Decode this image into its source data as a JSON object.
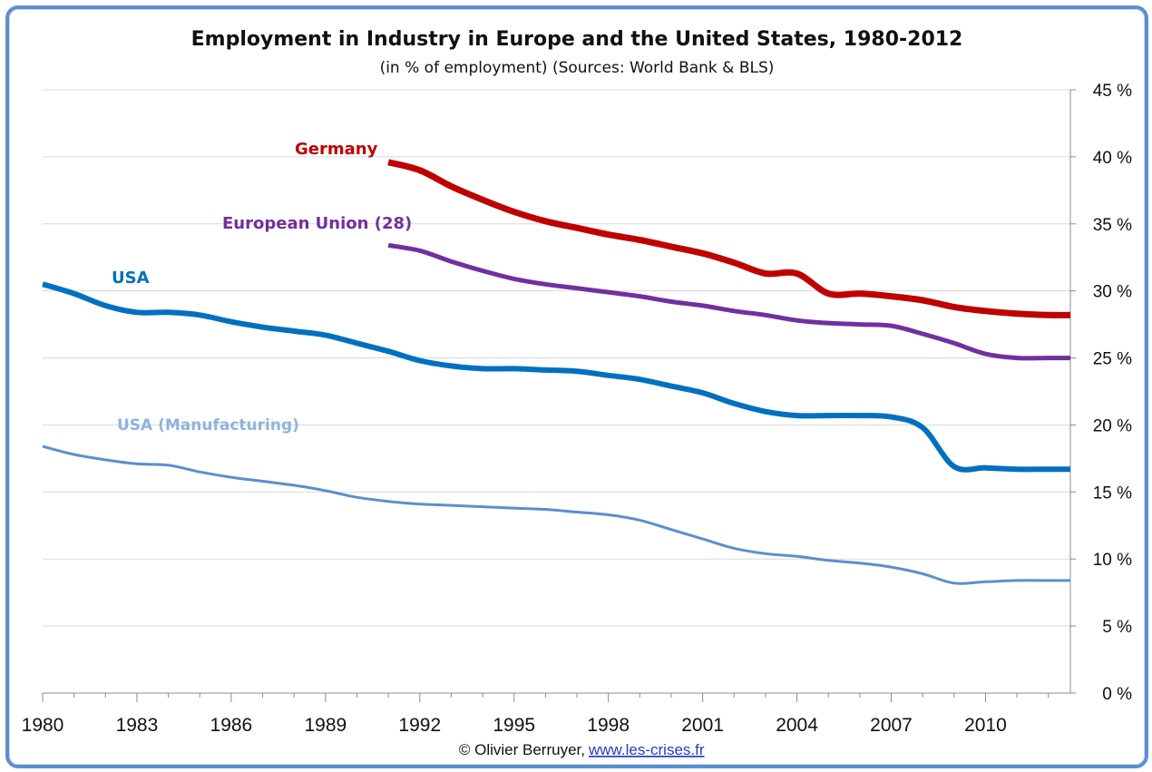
{
  "chart_data": {
    "type": "line",
    "title": "Employment in Industry in Europe and the United States, 1980-2012",
    "subtitle": "(in % of employment) (Sources: World Bank & BLS)",
    "xlim": [
      1980,
      2012.7
    ],
    "ylim": [
      0,
      45
    ],
    "x_ticks": [
      "1980",
      "1983",
      "1986",
      "1989",
      "1992",
      "1995",
      "1998",
      "2001",
      "2004",
      "2007",
      "2010"
    ],
    "y_ticks": [
      "0 %",
      "5 %",
      "10 %",
      "15 %",
      "20 %",
      "25 %",
      "30 %",
      "35 %",
      "40 %",
      "45 %"
    ],
    "y_axis_side": "right",
    "grid": true,
    "series": [
      {
        "name": "Germany",
        "color": "#c00000",
        "width": 7,
        "x": [
          1991,
          1992,
          1993,
          1994,
          1995,
          1996,
          1997,
          1998,
          1999,
          2000,
          2001,
          2002,
          2003,
          2004,
          2005,
          2006,
          2007,
          2008,
          2009,
          2010,
          2011,
          2012,
          2012.7
        ],
        "y": [
          39.6,
          39.0,
          37.8,
          36.8,
          35.9,
          35.2,
          34.7,
          34.2,
          33.8,
          33.3,
          32.8,
          32.1,
          31.3,
          31.3,
          29.8,
          29.8,
          29.6,
          29.3,
          28.8,
          28.5,
          28.3,
          28.2,
          28.2
        ]
      },
      {
        "name": "European Union (28)",
        "color": "#7030a0",
        "width": 5,
        "x": [
          1991,
          1992,
          1993,
          1994,
          1995,
          1996,
          1997,
          1998,
          1999,
          2000,
          2001,
          2002,
          2003,
          2004,
          2005,
          2006,
          2007,
          2008,
          2009,
          2010,
          2011,
          2012,
          2012.7
        ],
        "y": [
          33.4,
          33.0,
          32.2,
          31.5,
          30.9,
          30.5,
          30.2,
          29.9,
          29.6,
          29.2,
          28.9,
          28.5,
          28.2,
          27.8,
          27.6,
          27.5,
          27.4,
          26.8,
          26.1,
          25.3,
          25.0,
          25.0,
          25.0
        ]
      },
      {
        "name": "USA",
        "color": "#0070c0",
        "width": 6,
        "x": [
          1980,
          1981,
          1982,
          1983,
          1984,
          1985,
          1986,
          1987,
          1988,
          1989,
          1990,
          1991,
          1992,
          1993,
          1994,
          1995,
          1996,
          1997,
          1998,
          1999,
          2000,
          2001,
          2002,
          2003,
          2004,
          2005,
          2006,
          2007,
          2008,
          2009,
          2010,
          2011,
          2012,
          2012.7
        ],
        "y": [
          30.5,
          29.8,
          28.9,
          28.4,
          28.4,
          28.2,
          27.7,
          27.3,
          27.0,
          26.7,
          26.1,
          25.5,
          24.8,
          24.4,
          24.2,
          24.2,
          24.1,
          24.0,
          23.7,
          23.4,
          22.9,
          22.4,
          21.6,
          21.0,
          20.7,
          20.7,
          20.7,
          20.6,
          19.8,
          16.9,
          16.8,
          16.7,
          16.7,
          16.7
        ]
      },
      {
        "name": "USA (Manufacturing)",
        "color": "#5b8fd0",
        "label_color": "#8fb3e0",
        "width": 3,
        "x": [
          1980,
          1981,
          1982,
          1983,
          1984,
          1985,
          1986,
          1987,
          1988,
          1989,
          1990,
          1991,
          1992,
          1993,
          1994,
          1995,
          1996,
          1997,
          1998,
          1999,
          2000,
          2001,
          2002,
          2003,
          2004,
          2005,
          2006,
          2007,
          2008,
          2009,
          2010,
          2011,
          2012,
          2012.7
        ],
        "y": [
          18.4,
          17.8,
          17.4,
          17.1,
          17.0,
          16.5,
          16.1,
          15.8,
          15.5,
          15.1,
          14.6,
          14.3,
          14.1,
          14.0,
          13.9,
          13.8,
          13.7,
          13.5,
          13.3,
          12.9,
          12.2,
          11.5,
          10.8,
          10.4,
          10.2,
          9.9,
          9.7,
          9.4,
          8.9,
          8.2,
          8.3,
          8.4,
          8.4,
          8.4
        ]
      }
    ]
  },
  "footer": {
    "credit": "© Olivier Berruyer,",
    "link": "www.les-crises.fr"
  }
}
